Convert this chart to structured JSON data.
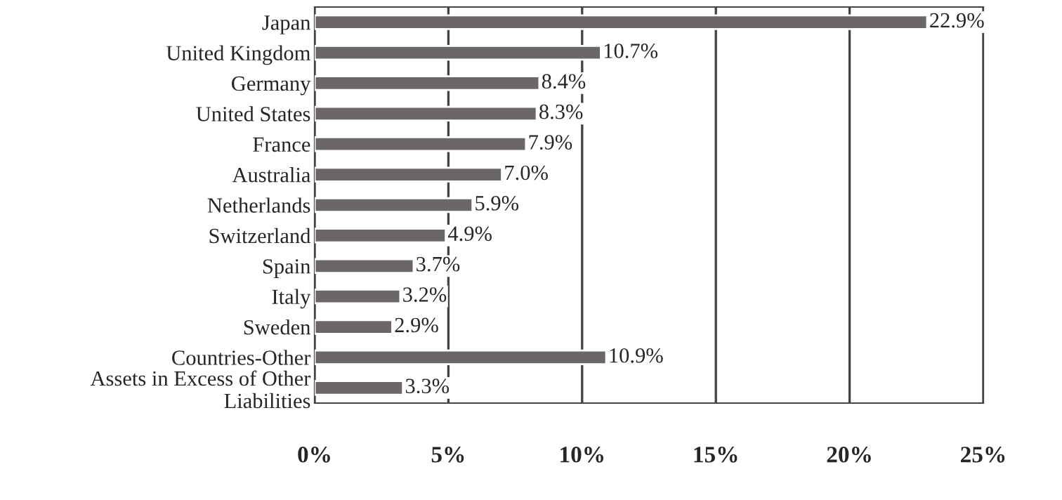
{
  "chart_data": {
    "type": "bar",
    "orientation": "horizontal",
    "categories": [
      "Japan",
      "United Kingdom",
      "Germany",
      "United States",
      "France",
      "Australia",
      "Netherlands",
      "Switzerland",
      "Spain",
      "Italy",
      "Sweden",
      "Countries-Other",
      "Assets in Excess of Other\nLiabilities"
    ],
    "values": [
      22.9,
      10.7,
      8.4,
      8.3,
      7.9,
      7.0,
      5.9,
      4.9,
      3.7,
      3.2,
      2.9,
      10.9,
      3.3
    ],
    "value_labels": [
      "22.9%",
      "10.7%",
      "8.4%",
      "8.3%",
      "7.9%",
      "7.0%",
      "5.9%",
      "4.9%",
      "3.7%",
      "3.2%",
      "2.9%",
      "10.9%",
      "3.3%"
    ],
    "color": "#6b6767",
    "xlim": [
      0,
      25
    ],
    "xticks": [
      {
        "value": 0,
        "label": "0%"
      },
      {
        "value": 5,
        "label": "5%"
      },
      {
        "value": 10,
        "label": "10%"
      },
      {
        "value": 15,
        "label": "15%"
      },
      {
        "value": 20,
        "label": "20%"
      },
      {
        "value": 25,
        "label": "25%"
      }
    ],
    "grid": "x",
    "legend": false
  }
}
